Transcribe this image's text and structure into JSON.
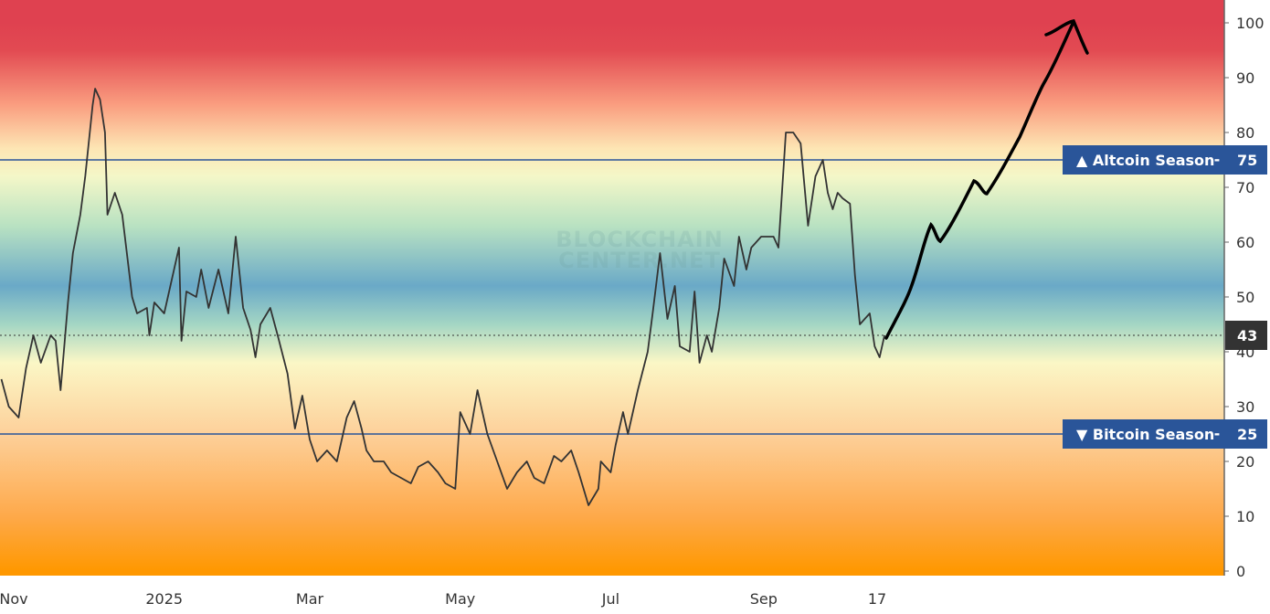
{
  "chart_data": {
    "type": "line",
    "title": "",
    "xlabel": "",
    "ylabel": "",
    "ylim": [
      0,
      100
    ],
    "y_ticks": [
      0,
      10,
      20,
      30,
      40,
      50,
      60,
      70,
      80,
      90,
      100
    ],
    "axis_position": "right",
    "grid": false,
    "x_tick_labels": [
      {
        "date": "2024-11-01",
        "label": "Nov"
      },
      {
        "date": "2025-01-01",
        "label": "2025"
      },
      {
        "date": "2025-03-01",
        "label": "Mar"
      },
      {
        "date": "2025-05-01",
        "label": "May"
      },
      {
        "date": "2025-07-01",
        "label": "Jul"
      },
      {
        "date": "2025-09-01",
        "label": "Sep"
      },
      {
        "date": "2025-10-17",
        "label": "17"
      }
    ],
    "current_value": 43,
    "reference_lines": [
      {
        "value": 75,
        "label": "▲ Altcoin Season",
        "value_label": "75",
        "color": "#2a5599"
      },
      {
        "value": 25,
        "label": "▼ Bitcoin Season",
        "value_label": "25",
        "color": "#2a5599"
      }
    ],
    "line_color": "#333333",
    "annotation": "hand-drawn black arrow projecting upward toward 100",
    "background_gradient": [
      {
        "value": 100,
        "color": "#df4150"
      },
      {
        "value": 95,
        "color": "#e24a52"
      },
      {
        "value": 85,
        "color": "#fa9e80"
      },
      {
        "value": 77,
        "color": "#fde6b4"
      },
      {
        "value": 72,
        "color": "#f4f7c8"
      },
      {
        "value": 63,
        "color": "#b9e2c2"
      },
      {
        "value": 52,
        "color": "#6aa9c7"
      },
      {
        "value": 45,
        "color": "#a4d6c4"
      },
      {
        "value": 38,
        "color": "#fbf7c6"
      },
      {
        "value": 25,
        "color": "#fdd09a"
      },
      {
        "value": 10,
        "color": "#fea94a"
      },
      {
        "value": 0,
        "color": "#ff9800"
      }
    ],
    "series": [
      {
        "points": [
          [
            "2024-10-27",
            35
          ],
          [
            "2024-10-30",
            30
          ],
          [
            "2024-11-03",
            28
          ],
          [
            "2024-11-06",
            37
          ],
          [
            "2024-11-09",
            43
          ],
          [
            "2024-11-12",
            38
          ],
          [
            "2024-11-16",
            43
          ],
          [
            "2024-11-18",
            42
          ],
          [
            "2024-11-20",
            33
          ],
          [
            "2024-11-23",
            49
          ],
          [
            "2024-11-25",
            58
          ],
          [
            "2024-11-28",
            65
          ],
          [
            "2024-11-30",
            72
          ],
          [
            "2024-12-03",
            85
          ],
          [
            "2024-12-04",
            88
          ],
          [
            "2024-12-06",
            86
          ],
          [
            "2024-12-08",
            80
          ],
          [
            "2024-12-09",
            65
          ],
          [
            "2024-12-12",
            69
          ],
          [
            "2024-12-15",
            65
          ],
          [
            "2024-12-19",
            50
          ],
          [
            "2024-12-21",
            47
          ],
          [
            "2024-12-25",
            48
          ],
          [
            "2024-12-26",
            43
          ],
          [
            "2024-12-28",
            49
          ],
          [
            "2025-01-01",
            47
          ],
          [
            "2025-01-05",
            55
          ],
          [
            "2025-01-07",
            59
          ],
          [
            "2025-01-08",
            42
          ],
          [
            "2025-01-10",
            51
          ],
          [
            "2025-01-14",
            50
          ],
          [
            "2025-01-16",
            55
          ],
          [
            "2025-01-19",
            48
          ],
          [
            "2025-01-23",
            55
          ],
          [
            "2025-01-27",
            47
          ],
          [
            "2025-01-30",
            61
          ],
          [
            "2025-02-02",
            48
          ],
          [
            "2025-02-05",
            44
          ],
          [
            "2025-02-07",
            39
          ],
          [
            "2025-02-09",
            45
          ],
          [
            "2025-02-13",
            48
          ],
          [
            "2025-02-16",
            43
          ],
          [
            "2025-02-20",
            36
          ],
          [
            "2025-02-23",
            26
          ],
          [
            "2025-02-26",
            32
          ],
          [
            "2025-03-01",
            24
          ],
          [
            "2025-03-04",
            20
          ],
          [
            "2025-03-08",
            22
          ],
          [
            "2025-03-12",
            20
          ],
          [
            "2025-03-16",
            28
          ],
          [
            "2025-03-19",
            31
          ],
          [
            "2025-03-22",
            26
          ],
          [
            "2025-03-24",
            22
          ],
          [
            "2025-03-27",
            20
          ],
          [
            "2025-03-31",
            20
          ],
          [
            "2025-04-03",
            18
          ],
          [
            "2025-04-07",
            17
          ],
          [
            "2025-04-11",
            16
          ],
          [
            "2025-04-14",
            19
          ],
          [
            "2025-04-18",
            20
          ],
          [
            "2025-04-22",
            18
          ],
          [
            "2025-04-25",
            16
          ],
          [
            "2025-04-29",
            15
          ],
          [
            "2025-05-01",
            29
          ],
          [
            "2025-05-05",
            25
          ],
          [
            "2025-05-08",
            33
          ],
          [
            "2025-05-12",
            25
          ],
          [
            "2025-05-16",
            20
          ],
          [
            "2025-05-20",
            15
          ],
          [
            "2025-05-24",
            18
          ],
          [
            "2025-05-28",
            20
          ],
          [
            "2025-05-31",
            17
          ],
          [
            "2025-06-04",
            16
          ],
          [
            "2025-06-08",
            21
          ],
          [
            "2025-06-11",
            20
          ],
          [
            "2025-06-15",
            22
          ],
          [
            "2025-06-18",
            18
          ],
          [
            "2025-06-22",
            12
          ],
          [
            "2025-06-26",
            15
          ],
          [
            "2025-06-27",
            20
          ],
          [
            "2025-07-01",
            18
          ],
          [
            "2025-07-03",
            23
          ],
          [
            "2025-07-06",
            29
          ],
          [
            "2025-07-08",
            25
          ],
          [
            "2025-07-12",
            33
          ],
          [
            "2025-07-16",
            40
          ],
          [
            "2025-07-18",
            47
          ],
          [
            "2025-07-21",
            58
          ],
          [
            "2025-07-24",
            46
          ],
          [
            "2025-07-27",
            52
          ],
          [
            "2025-07-29",
            41
          ],
          [
            "2025-08-02",
            40
          ],
          [
            "2025-08-04",
            51
          ],
          [
            "2025-08-06",
            38
          ],
          [
            "2025-08-09",
            43
          ],
          [
            "2025-08-11",
            40
          ],
          [
            "2025-08-14",
            48
          ],
          [
            "2025-08-16",
            57
          ],
          [
            "2025-08-20",
            52
          ],
          [
            "2025-08-22",
            61
          ],
          [
            "2025-08-25",
            55
          ],
          [
            "2025-08-27",
            59
          ],
          [
            "2025-08-31",
            61
          ],
          [
            "2025-09-05",
            61
          ],
          [
            "2025-09-07",
            59
          ],
          [
            "2025-09-10",
            80
          ],
          [
            "2025-09-13",
            80
          ],
          [
            "2025-09-16",
            78
          ],
          [
            "2025-09-19",
            63
          ],
          [
            "2025-09-22",
            72
          ],
          [
            "2025-09-25",
            75
          ],
          [
            "2025-09-27",
            69
          ],
          [
            "2025-09-29",
            66
          ],
          [
            "2025-10-01",
            69
          ],
          [
            "2025-10-03",
            68
          ],
          [
            "2025-10-06",
            67
          ],
          [
            "2025-10-08",
            54
          ],
          [
            "2025-10-10",
            45
          ],
          [
            "2025-10-14",
            47
          ],
          [
            "2025-10-16",
            41
          ],
          [
            "2025-10-18",
            39
          ],
          [
            "2025-10-20",
            43
          ]
        ]
      }
    ]
  },
  "watermark": {
    "line1": "BLOCKCHAIN",
    "line2": "CENTER.NET"
  }
}
